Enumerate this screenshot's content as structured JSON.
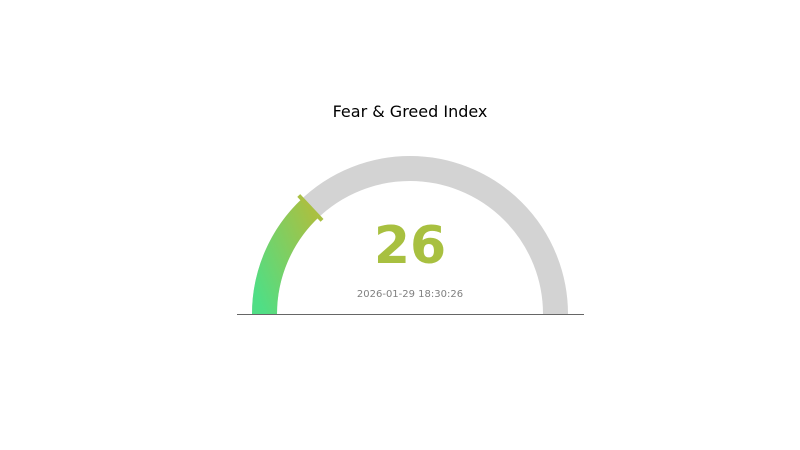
{
  "chart_data": {
    "type": "gauge",
    "title": "Fear & Greed Index",
    "value": 26,
    "range": [
      0,
      100
    ],
    "timestamp": "2026-01-29 18:30:26",
    "colors": {
      "gradient_start": "#50de85",
      "gradient_end": "#a9c042",
      "value_text": "#a8c040",
      "track": "#d3d3d3",
      "timestamp_text": "#808080",
      "baseline": "#666666"
    }
  }
}
